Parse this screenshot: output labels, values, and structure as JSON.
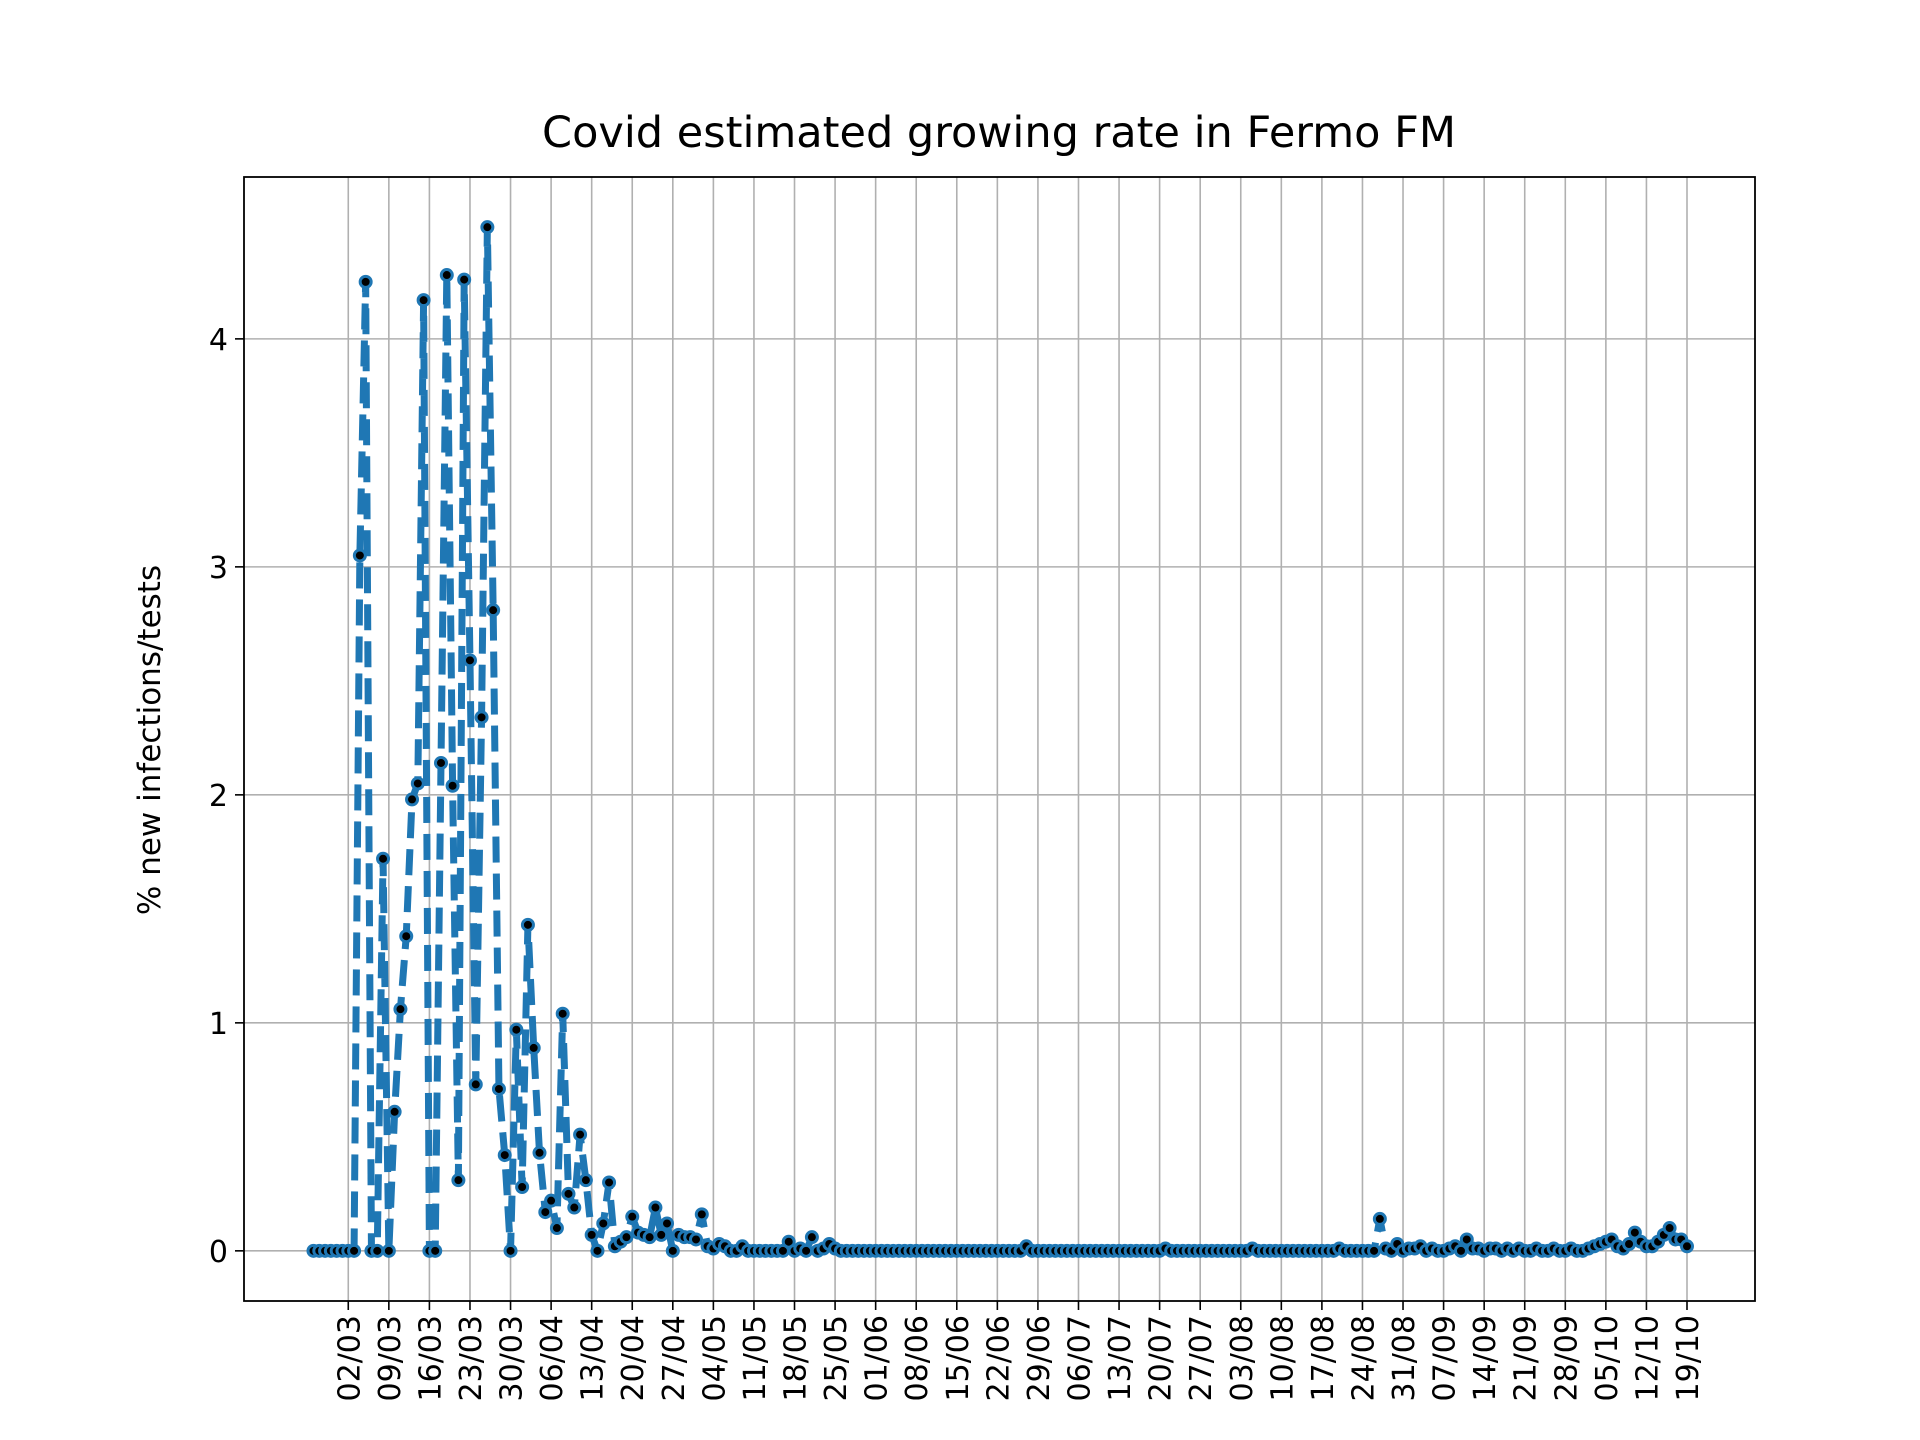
{
  "chart_data": {
    "type": "line",
    "title": "Covid estimated growing rate in Fermo FM",
    "y_label": "% new infections/tests",
    "color": "#1f77b4",
    "grid": true,
    "ylim": [
      -0.22,
      4.71
    ],
    "yticks": [
      0,
      1,
      2,
      3,
      4
    ],
    "categories": [
      null,
      null,
      null,
      null,
      null,
      null,
      "02/03",
      null,
      null,
      null,
      null,
      null,
      null,
      "09/03",
      null,
      null,
      null,
      null,
      null,
      null,
      "16/03",
      null,
      null,
      null,
      null,
      null,
      null,
      "23/03",
      null,
      null,
      null,
      null,
      null,
      null,
      "30/03",
      null,
      null,
      null,
      null,
      null,
      null,
      "06/04",
      null,
      null,
      null,
      null,
      null,
      null,
      "13/04",
      null,
      null,
      null,
      null,
      null,
      null,
      "20/04",
      null,
      null,
      null,
      null,
      null,
      null,
      "27/04",
      null,
      null,
      null,
      null,
      null,
      null,
      "04/05",
      null,
      null,
      null,
      null,
      null,
      null,
      "11/05",
      null,
      null,
      null,
      null,
      null,
      null,
      "18/05",
      null,
      null,
      null,
      null,
      null,
      null,
      "25/05",
      null,
      null,
      null,
      null,
      null,
      null,
      "01/06",
      null,
      null,
      null,
      null,
      null,
      null,
      "08/06",
      null,
      null,
      null,
      null,
      null,
      null,
      "15/06",
      null,
      null,
      null,
      null,
      null,
      null,
      "22/06",
      null,
      null,
      null,
      null,
      null,
      null,
      "29/06",
      null,
      null,
      null,
      null,
      null,
      null,
      "06/07",
      null,
      null,
      null,
      null,
      null,
      null,
      "13/07",
      null,
      null,
      null,
      null,
      null,
      null,
      "20/07",
      null,
      null,
      null,
      null,
      null,
      null,
      "27/07",
      null,
      null,
      null,
      null,
      null,
      null,
      "03/08",
      null,
      null,
      null,
      null,
      null,
      null,
      "10/08",
      null,
      null,
      null,
      null,
      null,
      null,
      "17/08",
      null,
      null,
      null,
      null,
      null,
      null,
      "24/08",
      null,
      null,
      null,
      null,
      null,
      null,
      "31/08",
      null,
      null,
      null,
      null,
      null,
      null,
      "07/09",
      null,
      null,
      null,
      null,
      null,
      null,
      "14/09",
      null,
      null,
      null,
      null,
      null,
      null,
      "21/09",
      null,
      null,
      null,
      null,
      null,
      null,
      "28/09",
      null,
      null,
      null,
      null,
      null,
      null,
      "05/10",
      null,
      null,
      null,
      null,
      null,
      null,
      "12/10",
      null,
      null,
      null,
      null,
      null,
      null,
      "19/10"
    ],
    "values": [
      0,
      0,
      0,
      0,
      0,
      0,
      0,
      0,
      3.05,
      4.25,
      0,
      0,
      1.72,
      0,
      0.61,
      1.06,
      1.38,
      1.98,
      2.05,
      4.17,
      0,
      0,
      2.14,
      4.28,
      2.04,
      0.31,
      4.26,
      2.59,
      0.73,
      2.34,
      4.49,
      2.81,
      0.71,
      0.42,
      0,
      0.97,
      0.28,
      1.43,
      0.89,
      0.43,
      0.17,
      0.22,
      0.1,
      1.04,
      0.25,
      0.19,
      0.51,
      0.31,
      0.07,
      0,
      0.12,
      0.3,
      0.02,
      0.04,
      0.06,
      0.15,
      0.08,
      0.07,
      0.06,
      0.19,
      0.07,
      0.12,
      0,
      0.07,
      0.06,
      0.06,
      0.05,
      0.16,
      0.02,
      0.01,
      0.03,
      0.02,
      0,
      0,
      0.02,
      0,
      0,
      0,
      0,
      0,
      0,
      0,
      0.04,
      0,
      0.01,
      0,
      0.06,
      0,
      0.01,
      0.03,
      0.01,
      0,
      0,
      0,
      0,
      0,
      0,
      0,
      0,
      0,
      0,
      0,
      0,
      0,
      0,
      0,
      0,
      0,
      0,
      0,
      0,
      0,
      0,
      0,
      0,
      0,
      0,
      0,
      0,
      0,
      0,
      0,
      0,
      0.02,
      0,
      0,
      0,
      0,
      0,
      0,
      0,
      0,
      0,
      0,
      0,
      0,
      0,
      0,
      0,
      0,
      0,
      0,
      0,
      0,
      0,
      0,
      0,
      0.01,
      0,
      0,
      0,
      0,
      0,
      0,
      0,
      0,
      0,
      0,
      0,
      0,
      0,
      0,
      0.01,
      0,
      0,
      0,
      0,
      0,
      0,
      0,
      0,
      0,
      0,
      0,
      0,
      0,
      0,
      0.01,
      0,
      0,
      0,
      0,
      0,
      0,
      0.14,
      0.01,
      0,
      0.03,
      0,
      0.01,
      0.01,
      0.02,
      0,
      0.01,
      0,
      0,
      0.01,
      0.02,
      0,
      0.05,
      0.01,
      0.01,
      0,
      0.01,
      0.01,
      0,
      0.01,
      0,
      0.01,
      0,
      0,
      0.01,
      0,
      0,
      0.01,
      0,
      0,
      0.01,
      0,
      0,
      0.01,
      0.02,
      0.03,
      0.04,
      0.05,
      0.02,
      0.01,
      0.03,
      0.08,
      0.04,
      0.02,
      0.02,
      0.04,
      0.07,
      0.1,
      0.05,
      0.05,
      0.02
    ]
  }
}
